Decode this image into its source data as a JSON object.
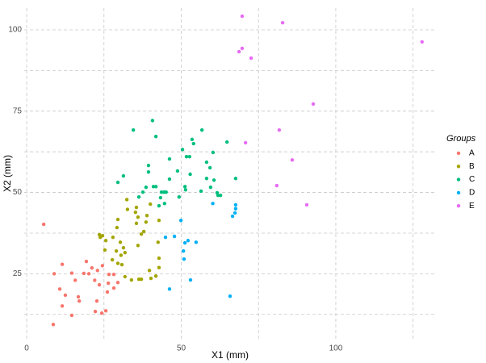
{
  "chart_data": {
    "type": "scatter",
    "x_label": "X1 (mm)",
    "y_label": "X2 (mm)",
    "legend_title": "Groups",
    "xlim": [
      -0.8,
      132.4
    ],
    "ylim": [
      5,
      106.7
    ],
    "xticks": [
      0,
      50,
      100
    ],
    "yticks": [
      25,
      50,
      75,
      100
    ],
    "x_minor_grid": [
      25,
      75,
      125
    ],
    "y_minor_grid": [
      12.5,
      37.5,
      62.5,
      87.5
    ],
    "grid": true,
    "legend_position": "right",
    "series": [
      {
        "name": "A",
        "color": "#F8766D",
        "x": [
          5.5,
          8.6,
          8.9,
          10.7,
          11.5,
          11.5,
          12.5,
          14.6,
          14.6,
          15.7,
          16.7,
          17.0,
          18.5,
          19.3,
          20.1,
          22.2,
          21.1,
          22.0,
          22.7,
          22.9,
          23.5,
          24.3,
          24.5,
          25.6,
          26.1,
          26.4,
          26.6,
          28.2,
          28.2,
          29.5
        ],
        "y": [
          40.2,
          9.4,
          25.0,
          20.3,
          27.9,
          15.1,
          18.4,
          12.2,
          25.2,
          23.0,
          17.9,
          16.6,
          25.1,
          28.8,
          25.0,
          13.4,
          26.8,
          23.0,
          16.6,
          26.0,
          21.6,
          12.9,
          27.5,
          13.6,
          19.4,
          22.1,
          24.8,
          20.6,
          24.8,
          22.3
        ]
      },
      {
        "name": "B",
        "color": "#A3A500",
        "x": [
          23.5,
          23.8,
          24.5,
          25.3,
          25.6,
          27.9,
          27.7,
          29.0,
          29.2,
          29.5,
          29.5,
          30.3,
          30.5,
          30.8,
          31.3,
          31.8,
          31.8,
          32.4,
          32.6,
          33.9,
          35.2,
          35.5,
          35.5,
          36.0,
          36.0,
          36.3,
          37.1,
          37.1,
          37.9,
          38.6,
          38.9,
          39.7,
          40.0,
          40.2,
          41.8,
          42.5,
          42.8,
          42.8,
          42.8
        ],
        "y": [
          37.0,
          36.2,
          36.7,
          32.3,
          35.2,
          36.2,
          29.3,
          32.0,
          39.2,
          41.7,
          28.2,
          34.7,
          30.7,
          27.8,
          33.0,
          31.5,
          24.1,
          47.8,
          44.8,
          23.1,
          43.9,
          40.5,
          45.4,
          33.7,
          42.4,
          23.3,
          37.2,
          23.3,
          38.0,
          40.9,
          42.9,
          26.0,
          46.4,
          23.6,
          24.3,
          34.7,
          29.8,
          41.4,
          26.9
        ]
      },
      {
        "name": "C",
        "color": "#00BF7D",
        "x": [
          29.5,
          31.3,
          34.5,
          36.3,
          37.6,
          38.6,
          39.4,
          39.4,
          40.7,
          41.0,
          41.8,
          41.8,
          42.8,
          43.3,
          43.6,
          44.4,
          44.6,
          45.1,
          46.2,
          46.2,
          48.8,
          49.3,
          50.4,
          51.2,
          51.4,
          51.7,
          52.7,
          52.9,
          53.5,
          54.0,
          56.4,
          56.7,
          58.2,
          58.2,
          59.3,
          59.5,
          60.3,
          60.6,
          61.6,
          61.9,
          62.7,
          64.8,
          67.6
        ],
        "y": [
          53.1,
          55.1,
          69.2,
          48.6,
          50.1,
          51.6,
          58.3,
          56.3,
          72.1,
          51.8,
          51.8,
          67.2,
          45.9,
          48.4,
          50.1,
          50.1,
          46.6,
          50.1,
          54.1,
          60.3,
          56.6,
          48.6,
          63.2,
          51.8,
          50.8,
          61.0,
          61.0,
          55.6,
          66.3,
          65.0,
          50.4,
          69.2,
          59.3,
          54.3,
          57.6,
          51.6,
          62.3,
          53.8,
          49.9,
          49.1,
          49.1,
          65.5,
          54.3
        ]
      },
      {
        "name": "D",
        "color": "#00B0F6",
        "x": [
          44.9,
          47.8,
          46.2,
          49.9,
          50.7,
          50.9,
          51.2,
          52.2,
          53.0,
          54.8,
          60.2,
          65.8,
          66.6,
          67.4,
          67.6,
          67.6
        ],
        "y": [
          36.2,
          36.5,
          20.3,
          41.4,
          32.0,
          29.5,
          34.5,
          35.2,
          23.1,
          34.7,
          46.6,
          18.1,
          42.7,
          43.7,
          46.2,
          45.0
        ]
      },
      {
        "name": "E",
        "color": "#E76BF3",
        "x": [
          69.7,
          68.7,
          69.7,
          72.6,
          82.8,
          127.9,
          92.7,
          81.7,
          70.8,
          85.9,
          80.9,
          90.6
        ],
        "y": [
          104.2,
          93.3,
          94.3,
          91.3,
          102.2,
          96.3,
          77.2,
          69.2,
          65.3,
          60.0,
          52.1,
          46.2
        ]
      }
    ]
  }
}
